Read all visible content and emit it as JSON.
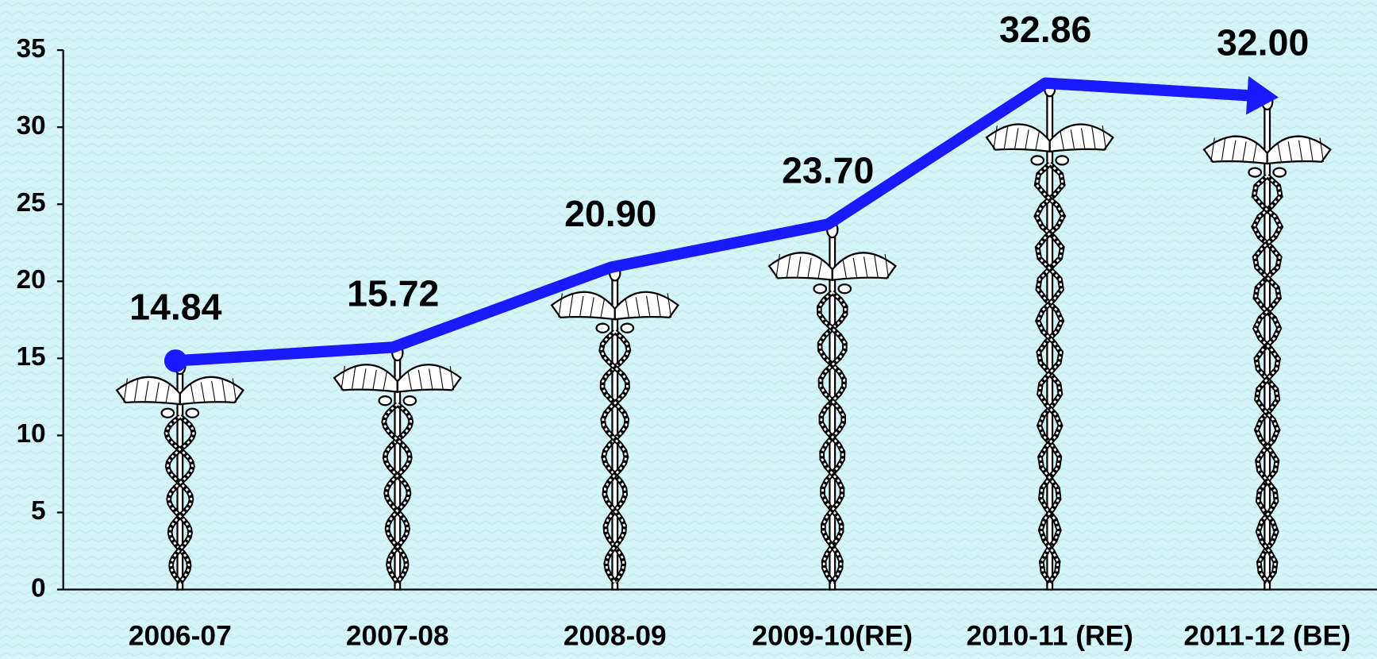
{
  "chart_data": {
    "type": "pictograph",
    "categories": [
      "2006-07",
      "2007-08",
      "2008-09",
      "2009-10(RE)",
      "2010-11 (RE)",
      "2011-12 (BE)"
    ],
    "values": [
      14.84,
      15.72,
      20.9,
      23.7,
      32.86,
      32.0
    ],
    "value_labels": [
      "14.84",
      "15.72",
      "20.90",
      "23.70",
      "32.86",
      "32.00"
    ],
    "ylim": [
      0,
      35
    ],
    "yticks": [
      0,
      5,
      10,
      15,
      20,
      25,
      30,
      35
    ],
    "line_color": "#1a1aff",
    "grid": false
  }
}
